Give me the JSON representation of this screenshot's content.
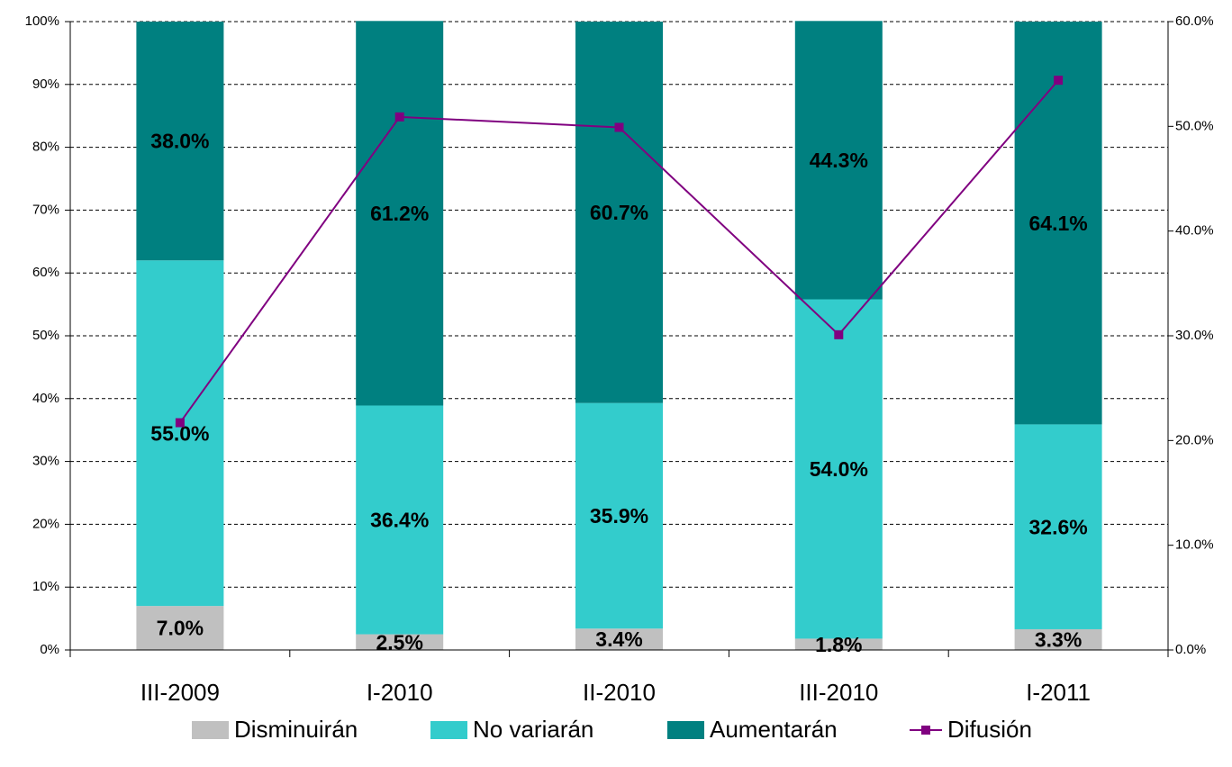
{
  "chart_data": {
    "type": "stacked-bar-line",
    "categories": [
      "III-2009",
      "I-2010",
      "II-2010",
      "III-2010",
      "I-2011"
    ],
    "series": [
      {
        "name": "Disminuirán",
        "color": "#c0c0c0",
        "values": [
          7.0,
          2.5,
          3.4,
          1.8,
          3.3
        ],
        "value_labels": [
          "7.0%",
          "2.5%",
          "3.4%",
          "1.8%",
          "3.3%"
        ]
      },
      {
        "name": "No variarán",
        "color": "#33cccc",
        "values": [
          55.0,
          36.4,
          35.9,
          54.0,
          32.6
        ],
        "value_labels": [
          "55.0%",
          "36.4%",
          "35.9%",
          "54.0%",
          "32.6%"
        ]
      },
      {
        "name": "Aumentarán",
        "color": "#008080",
        "values": [
          38.0,
          61.2,
          60.7,
          44.3,
          64.1
        ],
        "value_labels": [
          "38.0%",
          "61.2%",
          "60.7%",
          "44.3%",
          "64.1%"
        ]
      },
      {
        "name": "Difusión",
        "color": "#800080",
        "axis": "y2",
        "type": "line",
        "values": [
          21.7,
          50.9,
          49.9,
          30.1,
          54.4
        ]
      }
    ],
    "ylim": [
      0,
      100
    ],
    "yticks": [
      {
        "value": 0,
        "label": "0%"
      },
      {
        "value": 10,
        "label": "10%"
      },
      {
        "value": 20,
        "label": "20%"
      },
      {
        "value": 30,
        "label": "30%"
      },
      {
        "value": 40,
        "label": "40%"
      },
      {
        "value": 50,
        "label": "50%"
      },
      {
        "value": 60,
        "label": "60%"
      },
      {
        "value": 70,
        "label": "70%"
      },
      {
        "value": 80,
        "label": "80%"
      },
      {
        "value": 90,
        "label": "90%"
      },
      {
        "value": 100,
        "label": "100%"
      }
    ],
    "y2lim": [
      0,
      60
    ],
    "y2ticks": [
      {
        "value": 0,
        "label": "0.0%"
      },
      {
        "value": 10,
        "label": "10.0%"
      },
      {
        "value": 20,
        "label": "20.0%"
      },
      {
        "value": 30,
        "label": "30.0%"
      },
      {
        "value": 40,
        "label": "40.0%"
      },
      {
        "value": 50,
        "label": "50.0%"
      },
      {
        "value": 60,
        "label": "60.0%"
      }
    ],
    "grid": true,
    "legend": "bottom"
  }
}
